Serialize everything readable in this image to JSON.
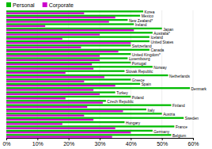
{
  "chart_data": {
    "type": "bar",
    "orientation": "horizontal",
    "categories": [
      "Korea",
      "Mexico",
      "New Zealand*",
      "Ireland",
      "Japan",
      "Australia*",
      "Iceland",
      "United States",
      "Switzerland",
      "Canada",
      "United Kingdom*",
      "Luxembourg",
      "Portugal",
      "Norway",
      "Slovak Republic",
      "Netherlands",
      "Greece",
      "Spain",
      "Denmark",
      "Turkey",
      "Poland",
      "Czech Republic",
      "Finland",
      "Italy",
      "Austria",
      "Sweden",
      "Hungary",
      "France",
      "Germany",
      "Belgium"
    ],
    "series": [
      {
        "name": "Personal",
        "color": "#00bb00",
        "values": [
          44,
          43,
          39,
          41,
          50,
          47,
          46,
          46,
          40,
          46,
          40,
          39,
          40,
          47,
          38,
          52,
          40,
          43,
          59,
          35,
          40,
          32,
          53,
          45,
          50,
          57,
          38,
          54,
          47,
          53
        ]
      },
      {
        "name": "Corporate",
        "color": "#cc00cc",
        "values": [
          25,
          35,
          33,
          12.5,
          41,
          30,
          18,
          40,
          24,
          36,
          30,
          30,
          27.5,
          28,
          19,
          31.5,
          25,
          35,
          28,
          30,
          19,
          31,
          26,
          37.5,
          25,
          28,
          18,
          35,
          40,
          34
        ]
      }
    ],
    "xlim": [
      0,
      60
    ],
    "xticks": [
      {
        "value": 0,
        "label": "0%"
      },
      {
        "value": 10,
        "label": "10%"
      },
      {
        "value": 20,
        "label": "20%"
      },
      {
        "value": 30,
        "label": "30%"
      },
      {
        "value": 40,
        "label": "40%"
      },
      {
        "value": 50,
        "label": "50%"
      },
      {
        "value": 60,
        "label": "60%"
      }
    ],
    "grid": true,
    "legend": "top",
    "tick_labels": "x"
  }
}
